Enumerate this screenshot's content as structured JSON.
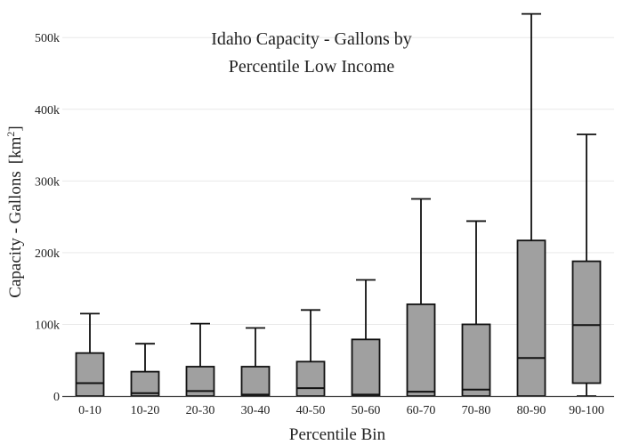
{
  "chart_data": {
    "type": "box",
    "title_lines": [
      "Idaho Capacity - Gallons by",
      "Percentile Low Income"
    ],
    "xlabel": "Percentile Bin",
    "ylabel_main": "Capacity - Gallons",
    "ylabel_unit": "[km",
    "ylabel_sup": "2",
    "ylabel_close": "]",
    "ylim": [
      0,
      540000
    ],
    "yticks": [
      0,
      100000,
      200000,
      300000,
      400000,
      500000
    ],
    "ytick_labels": [
      "0",
      "100k",
      "200k",
      "300k",
      "400k",
      "500k"
    ],
    "grid": true,
    "categories": [
      "0-10",
      "10-20",
      "20-30",
      "30-40",
      "40-50",
      "50-60",
      "60-70",
      "70-80",
      "80-90",
      "90-100"
    ],
    "boxes": [
      {
        "min": 0,
        "q1": 0,
        "median": 18000,
        "q3": 60000,
        "max": 115000
      },
      {
        "min": 0,
        "q1": 0,
        "median": 4000,
        "q3": 34000,
        "max": 73000
      },
      {
        "min": 0,
        "q1": 0,
        "median": 7000,
        "q3": 41000,
        "max": 101000
      },
      {
        "min": 0,
        "q1": 0,
        "median": 2000,
        "q3": 41000,
        "max": 95000
      },
      {
        "min": 0,
        "q1": 0,
        "median": 11000,
        "q3": 48000,
        "max": 120000
      },
      {
        "min": 0,
        "q1": 0,
        "median": 2000,
        "q3": 79000,
        "max": 162000
      },
      {
        "min": 0,
        "q1": 0,
        "median": 6000,
        "q3": 128000,
        "max": 275000
      },
      {
        "min": 0,
        "q1": 0,
        "median": 9000,
        "q3": 100000,
        "max": 244000
      },
      {
        "min": 0,
        "q1": 0,
        "median": 53000,
        "q3": 217000,
        "max": 533000
      },
      {
        "min": 0,
        "q1": 18000,
        "median": 99000,
        "q3": 188000,
        "max": 365000
      }
    ],
    "colors": {
      "box_fill": "#a0a0a0",
      "box_stroke": "#111111"
    }
  }
}
